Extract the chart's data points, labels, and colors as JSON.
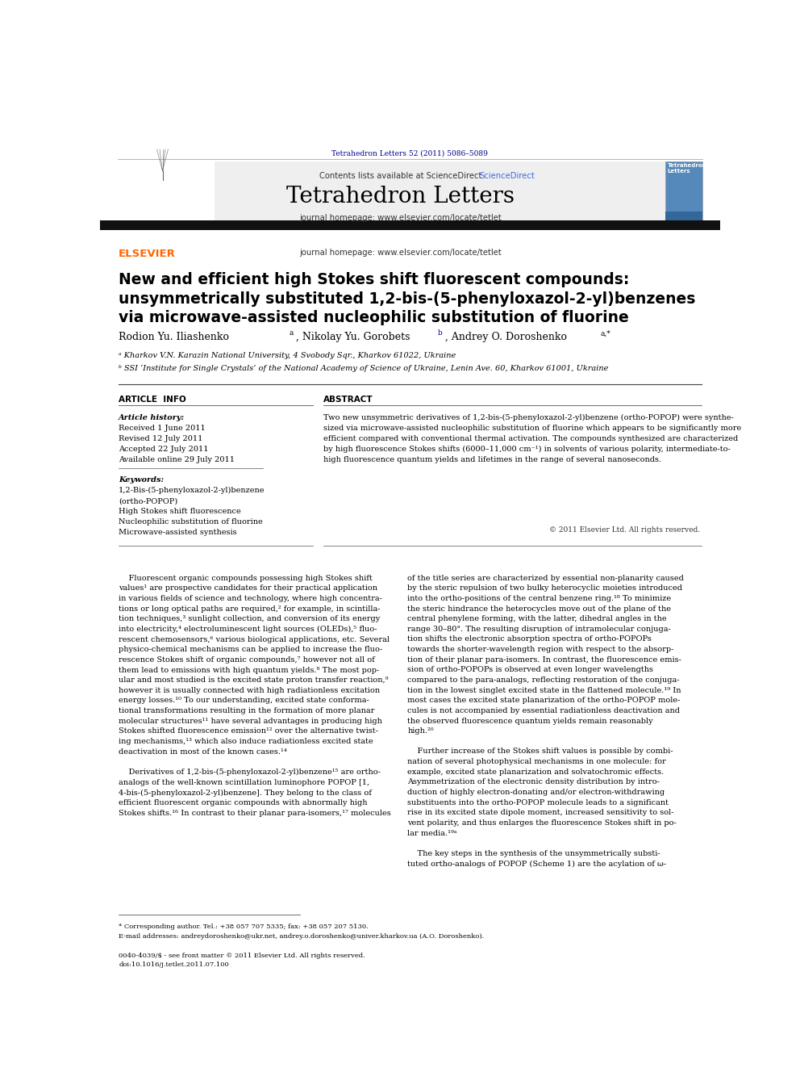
{
  "page_width": 9.92,
  "page_height": 13.23,
  "bg_color": "#ffffff",
  "header_journal_ref": "Tetrahedron Letters 52 (2011) 5086–5089",
  "header_journal_ref_color": "#00008B",
  "journal_name": "Tetrahedron Letters",
  "journal_homepage": "journal homepage: www.elsevier.com/locate/tetlet",
  "contents_text": "Contents lists available at ",
  "sciencedirect_text": "ScienceDirect",
  "sciencedirect_color": "#4169E1",
  "title_line1": "New and efficient high Stokes shift fluorescent compounds:",
  "title_line2": "unsymmetrically substituted 1,2-bis-(5-phenyloxazol-2-yl)benzenes",
  "title_line3": "via microwave-assisted nucleophilic substitution of fluorine",
  "article_info_header": "ARTICLE  INFO",
  "abstract_header": "ABSTRACT",
  "article_history_label": "Article history:",
  "received": "Received 1 June 2011",
  "revised": "Revised 12 July 2011",
  "accepted": "Accepted 22 July 2011",
  "available": "Available online 29 July 2011",
  "keywords_label": "Keywords:",
  "keyword1": "1,2-Bis-(5-phenyloxazol-2-yl)benzene",
  "keyword2": "(ortho-POPOP)",
  "keyword3": "High Stokes shift fluorescence",
  "keyword4": "Nucleophilic substitution of fluorine",
  "keyword5": "Microwave-assisted synthesis",
  "copyright": "© 2011 Elsevier Ltd. All rights reserved.",
  "header_band_color": "#111111",
  "gray_header_bg": "#efefef",
  "affil_a": "ᵃ Kharkov V.N. Karazin National University, 4 Svobody Sqr., Kharkov 61022, Ukraine",
  "affil_b": "ᵇ SSI ‘Institute for Single Crystals’ of the National Academy of Science of Ukraine, Lenin Ave. 60, Kharkov 61001, Ukraine",
  "footer_note": "* Corresponding author. Tel.: +38 057 707 5335; fax: +38 057 207 5130.",
  "footer_email": "E-mail addresses: andreydoroshenko@ukr.net, andrey.o.doroshenko@univer.kharkov.ua (A.O. Doroshenko).",
  "footer_issn": "0040-4039/$ - see front matter © 2011 Elsevier Ltd. All rights reserved.",
  "footer_doi": "doi:10.1016/j.tetlet.2011.07.100"
}
